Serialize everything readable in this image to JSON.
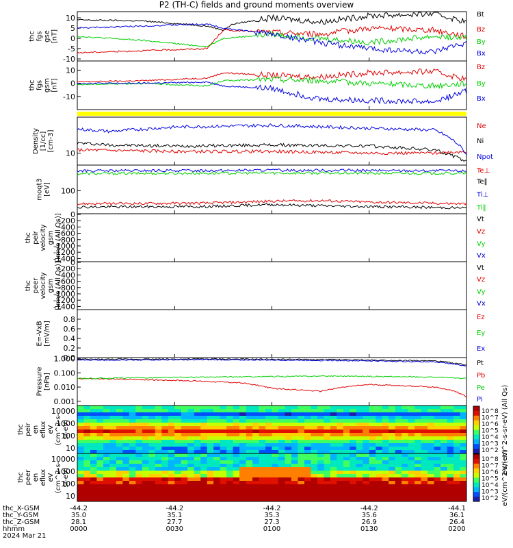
{
  "title": "P2 (TH-C) fields and ground moments overview",
  "colors": {
    "black": "#000000",
    "red": "#e00000",
    "green": "#00d000",
    "blue": "#0000e0",
    "yellow": "#ffff00"
  },
  "chart_data": [
    {
      "id": "fgs",
      "type": "line",
      "ylabel_lines": [
        "thc",
        "fgs",
        "gse",
        "[nT]"
      ],
      "yticks": [
        "10",
        "5",
        "0",
        "-5",
        "-10"
      ],
      "ylim": [
        -11,
        13
      ],
      "series": [
        {
          "name": "Bt",
          "color": "#000000",
          "points": [
            [
              0,
              9
            ],
            [
              20,
              8.5
            ],
            [
              40,
              6
            ],
            [
              45,
              4
            ],
            [
              48,
              7
            ],
            [
              60,
              10
            ],
            [
              75,
              8
            ],
            [
              90,
              11
            ],
            [
              110,
              12
            ],
            [
              120,
              8
            ]
          ]
        },
        {
          "name": "Bz",
          "color": "#e00000",
          "points": [
            [
              0,
              -7
            ],
            [
              20,
              -6
            ],
            [
              40,
              -5
            ],
            [
              45,
              4
            ],
            [
              60,
              3
            ],
            [
              75,
              2
            ],
            [
              90,
              5
            ],
            [
              110,
              4
            ],
            [
              120,
              1
            ]
          ]
        },
        {
          "name": "By",
          "color": "#00d000",
          "points": [
            [
              0,
              1
            ],
            [
              20,
              -1
            ],
            [
              40,
              -4
            ],
            [
              45,
              0
            ],
            [
              60,
              2
            ],
            [
              75,
              0
            ],
            [
              90,
              -2
            ],
            [
              110,
              1
            ],
            [
              120,
              0
            ]
          ]
        },
        {
          "name": "Bx",
          "color": "#0000e0",
          "points": [
            [
              0,
              5
            ],
            [
              20,
              6
            ],
            [
              40,
              7
            ],
            [
              45,
              5
            ],
            [
              60,
              2
            ],
            [
              75,
              -2
            ],
            [
              90,
              -5
            ],
            [
              110,
              -7
            ],
            [
              120,
              -2
            ]
          ]
        }
      ]
    },
    {
      "id": "gsm",
      "type": "line",
      "ylabel_lines": [
        "thc",
        "fgs",
        "gsm",
        "[nT]"
      ],
      "yticks": [
        "10",
        "0",
        "-10"
      ],
      "ylim": [
        -20,
        17
      ],
      "series": [
        {
          "name": "Bz",
          "color": "#e00000",
          "points": [
            [
              0,
              1
            ],
            [
              20,
              2
            ],
            [
              40,
              4
            ],
            [
              45,
              8
            ],
            [
              60,
              6
            ],
            [
              75,
              5
            ],
            [
              90,
              8
            ],
            [
              110,
              9
            ],
            [
              120,
              3
            ]
          ]
        },
        {
          "name": "By",
          "color": "#00d000",
          "points": [
            [
              0,
              -1
            ],
            [
              20,
              0
            ],
            [
              40,
              -2
            ],
            [
              45,
              2
            ],
            [
              60,
              3
            ],
            [
              75,
              2
            ],
            [
              90,
              0
            ],
            [
              110,
              -2
            ],
            [
              120,
              0
            ]
          ]
        },
        {
          "name": "Bx",
          "color": "#0000e0",
          "points": [
            [
              0,
              0
            ],
            [
              20,
              0
            ],
            [
              40,
              1
            ],
            [
              45,
              -2
            ],
            [
              60,
              -4
            ],
            [
              75,
              -12
            ],
            [
              90,
              -13
            ],
            [
              110,
              -14
            ],
            [
              120,
              -6
            ]
          ]
        }
      ]
    },
    {
      "id": "density",
      "type": "line",
      "ylabel_lines": [
        "Density",
        "[1/cc]",
        "[cm-3]"
      ],
      "yticks": [
        "10"
      ],
      "log": true,
      "ylim": [
        5,
        80
      ],
      "series": [
        {
          "name": "Ne",
          "color": "#e00000",
          "points": [
            [
              0,
              12
            ],
            [
              30,
              11
            ],
            [
              60,
              11
            ],
            [
              90,
              10
            ],
            [
              110,
              10
            ],
            [
              120,
              11
            ]
          ]
        },
        {
          "name": "Ni",
          "color": "#000000",
          "points": [
            [
              0,
              18
            ],
            [
              10,
              16
            ],
            [
              30,
              15
            ],
            [
              60,
              16
            ],
            [
              90,
              15
            ],
            [
              110,
              12
            ],
            [
              120,
              6
            ]
          ]
        },
        {
          "name": "Npot",
          "color": "#0000e0",
          "points": [
            [
              0,
              40
            ],
            [
              10,
              35
            ],
            [
              30,
              45
            ],
            [
              60,
              50
            ],
            [
              90,
              42
            ],
            [
              110,
              38
            ],
            [
              120,
              9
            ]
          ]
        }
      ]
    },
    {
      "id": "temp",
      "type": "line",
      "ylabel_lines": [
        "moqt3",
        "[eV]"
      ],
      "yticks": [
        "100"
      ],
      "log": true,
      "ylim": [
        20,
        600
      ],
      "series": [
        {
          "name": "Te⊥",
          "color": "#e00000",
          "points": [
            [
              0,
              40
            ],
            [
              40,
              42
            ],
            [
              60,
              48
            ],
            [
              75,
              50
            ],
            [
              90,
              45
            ],
            [
              120,
              40
            ]
          ]
        },
        {
          "name": "Te‖",
          "color": "#000000",
          "points": [
            [
              0,
              32
            ],
            [
              40,
              33
            ],
            [
              60,
              38
            ],
            [
              75,
              35
            ],
            [
              90,
              33
            ],
            [
              120,
              30
            ]
          ]
        },
        {
          "name": "Ti⊥",
          "color": "#0000e0",
          "points": [
            [
              0,
              400
            ],
            [
              40,
              410
            ],
            [
              60,
              420
            ],
            [
              90,
              410
            ],
            [
              120,
              400
            ]
          ]
        },
        {
          "name": "Ti‖",
          "color": "#00d000",
          "points": [
            [
              0,
              330
            ],
            [
              40,
              340
            ],
            [
              60,
              345
            ],
            [
              90,
              340
            ],
            [
              120,
              335
            ]
          ]
        }
      ]
    },
    {
      "id": "peirv",
      "type": "line",
      "ylabel_lines": [
        "thc",
        "peir",
        "velocity",
        "gsm",
        "[km/s (All Qs)]"
      ],
      "yticks": [
        "0",
        "-200",
        "-400",
        "-600",
        "-800",
        "-1000",
        "-1200",
        "-1400"
      ],
      "ylim": [
        -1500,
        20
      ],
      "series": [
        {
          "name": "Vt",
          "color": "#000000",
          "points": []
        },
        {
          "name": "Vz",
          "color": "#e00000",
          "points": []
        },
        {
          "name": "Vy",
          "color": "#00d000",
          "points": []
        },
        {
          "name": "Vx",
          "color": "#0000e0",
          "points": []
        }
      ]
    },
    {
      "id": "peerv",
      "type": "line",
      "ylabel_lines": [
        "thc",
        "peer",
        "velocity",
        "gsm",
        "[km/s (All Qs)]"
      ],
      "yticks": [
        "0",
        "-200",
        "-400",
        "-600",
        "-800",
        "-1000",
        "-1200",
        "-1400"
      ],
      "ylim": [
        -1500,
        20
      ],
      "series": [
        {
          "name": "Vt",
          "color": "#000000",
          "points": []
        },
        {
          "name": "Vz",
          "color": "#e00000",
          "points": []
        },
        {
          "name": "Vy",
          "color": "#00d000",
          "points": []
        },
        {
          "name": "Vx",
          "color": "#0000e0",
          "points": []
        }
      ]
    },
    {
      "id": "efield",
      "type": "line",
      "ylabel_lines": [
        "E=-VxB",
        "[mV/m]"
      ],
      "yticks": [
        "0.8",
        "0.6",
        "0.4",
        "0.2",
        "0.0"
      ],
      "ylim": [
        0,
        1
      ],
      "series": [
        {
          "name": "Ez",
          "color": "#e00000",
          "points": []
        },
        {
          "name": "Ey",
          "color": "#00d000",
          "points": []
        },
        {
          "name": "Ex",
          "color": "#0000e0",
          "points": []
        }
      ]
    },
    {
      "id": "pressure",
      "type": "line",
      "ylabel_lines": [
        "Pressure",
        "[nPa]"
      ],
      "yticks": [
        "1.000",
        "0.100",
        "0.010",
        "0.001"
      ],
      "log": true,
      "ylim": [
        0.0005,
        1.2
      ],
      "series": [
        {
          "name": "Pt",
          "color": "#000000",
          "points": [
            [
              0,
              0.9
            ],
            [
              40,
              0.95
            ],
            [
              80,
              0.85
            ],
            [
              110,
              0.7
            ],
            [
              120,
              0.35
            ]
          ]
        },
        {
          "name": "Pb",
          "color": "#e00000",
          "points": [
            [
              0,
              0.04
            ],
            [
              30,
              0.03
            ],
            [
              50,
              0.02
            ],
            [
              60,
              0.008
            ],
            [
              75,
              0.005
            ],
            [
              90,
              0.015
            ],
            [
              110,
              0.01
            ],
            [
              120,
              0.002
            ]
          ]
        },
        {
          "name": "Pe",
          "color": "#00d000",
          "points": [
            [
              0,
              0.04
            ],
            [
              40,
              0.05
            ],
            [
              80,
              0.06
            ],
            [
              110,
              0.05
            ],
            [
              120,
              0.04
            ]
          ]
        },
        {
          "name": "Pi",
          "color": "#0000e0",
          "points": [
            [
              0,
              0.8
            ],
            [
              40,
              0.85
            ],
            [
              80,
              0.75
            ],
            [
              110,
              0.6
            ],
            [
              120,
              0.3
            ]
          ]
        }
      ]
    },
    {
      "id": "peirflux",
      "type": "heatmap",
      "ylabel_lines": [
        "thc",
        "peir",
        "en",
        "eflux",
        "eV",
        "(cm^2-s-",
        "sr-eV)"
      ],
      "yticks": [
        "10000",
        "1000",
        "100",
        "10"
      ]
    },
    {
      "id": "peerflux",
      "type": "heatmap",
      "ylabel_lines": [
        "thc",
        "peer",
        "en",
        "eflux",
        "eV",
        "(cm^2-s-",
        "sr-eV)"
      ],
      "yticks": [
        "10000",
        "1000",
        "100",
        "10"
      ]
    }
  ],
  "cbar": {
    "ticks1": [
      "10^8",
      "10^7",
      "10^6",
      "10^5",
      "10^4",
      "10^3",
      "10^2"
    ],
    "ticks2": [
      "10^8",
      "10^7",
      "10^6",
      "10^5",
      "10^4",
      "10^3",
      "10^2"
    ],
    "label1": "eV/(cm^2-s-sr-eV) (All Qs)",
    "label2": "eV/(cm^2-sr-eV)"
  },
  "xaxis": {
    "rows": [
      {
        "name": "thc_X-GSM",
        "values": [
          "-44.2",
          "-44.2",
          "-44.2",
          "-44.2",
          "-44.1"
        ]
      },
      {
        "name": "thc_Y-GSM",
        "values": [
          "35.0",
          "35.1",
          "35.3",
          "35.6",
          "36.1"
        ]
      },
      {
        "name": "thc_Z-GSM",
        "values": [
          "28.1",
          "27.7",
          "27.3",
          "26.9",
          "26.4"
        ]
      },
      {
        "name": "hhmm",
        "values": [
          "0000",
          "0030",
          "0100",
          "0130",
          "0200"
        ]
      }
    ],
    "date": "2024 Mar 21"
  }
}
